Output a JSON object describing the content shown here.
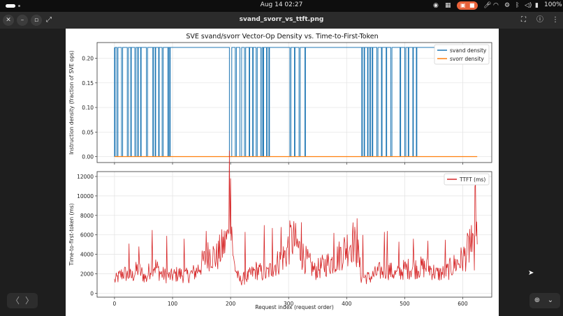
{
  "topbar": {
    "clock": "Aug 14  02:27",
    "battery": "100%",
    "icons": [
      "screen-record-icon",
      "microphone-icon",
      "wifi-icon",
      "bluetooth-icon",
      "volume-icon",
      "battery-icon"
    ]
  },
  "header": {
    "title": "svand_svorr_vs_ttft.png",
    "close_glyph": "✕",
    "minimize_glyph": "–",
    "restore_glyph": "▫",
    "fullscreen_glyph": "⤢",
    "crop_glyph": "⛶",
    "info_glyph": "ⓘ",
    "menu_glyph": "⋮"
  },
  "footer": {
    "prev_glyph": "〈",
    "next_glyph": "〉",
    "zoom_glyph": "⊕",
    "zoom_menu_glyph": "⌄"
  },
  "colors": {
    "svand": "#1f77b4",
    "svorr": "#ff7f0e",
    "ttft": "#d62728",
    "record_pill": "#e8623a"
  },
  "chart_data": [
    {
      "type": "line",
      "title": "SVE svand/svorr Vector-Op Density vs. Time-to-First-Token",
      "ylabel": "Instruction density (fraction of SVE ops)",
      "xlim": [
        -30,
        650
      ],
      "ylim": [
        -0.012,
        0.232
      ],
      "yticks": [
        0.0,
        0.05,
        0.1,
        0.15,
        0.2
      ],
      "grid": true,
      "legend": "top-right",
      "series": [
        {
          "name": "svand density",
          "high": 0.222,
          "low": 0.0,
          "x_range": [
            0,
            625
          ],
          "low_intervals": [
            [
              0,
              1
            ],
            [
              4,
              6
            ],
            [
              12,
              14
            ],
            [
              22,
              24
            ],
            [
              28,
              29
            ],
            [
              35,
              37
            ],
            [
              40,
              41
            ],
            [
              45,
              46
            ],
            [
              55,
              57
            ],
            [
              66,
              67
            ],
            [
              70,
              71
            ],
            [
              76,
              77
            ],
            [
              82,
              84
            ],
            [
              92,
              93
            ],
            [
              95,
              96
            ],
            [
              198,
              202
            ],
            [
              208,
              210
            ],
            [
              216,
              219
            ],
            [
              224,
              226
            ],
            [
              232,
              233
            ],
            [
              238,
              239
            ],
            [
              244,
              246
            ],
            [
              252,
              254
            ],
            [
              256,
              257
            ],
            [
              262,
              263
            ],
            [
              266,
              267
            ],
            [
              302,
              304
            ],
            [
              310,
              311
            ],
            [
              318,
              320
            ],
            [
              328,
              329
            ],
            [
              426,
              427
            ],
            [
              430,
              431
            ],
            [
              436,
              437
            ],
            [
              440,
              441
            ],
            [
              444,
              445
            ],
            [
              452,
              454
            ],
            [
              460,
              461
            ],
            [
              468,
              469
            ],
            [
              476,
              478
            ],
            [
              492,
              493
            ],
            [
              500,
              502
            ],
            [
              506,
              507
            ],
            [
              514,
              515
            ],
            [
              520,
              521
            ]
          ]
        },
        {
          "name": "svorr density",
          "y": [
            [
              0,
              0.0
            ],
            [
              625,
              0.0
            ]
          ]
        }
      ]
    },
    {
      "type": "line",
      "xlabel": "Request index (request order)",
      "ylabel": "Time-to-first-token (ms)",
      "xlim": [
        -30,
        650
      ],
      "ylim": [
        -400,
        12500
      ],
      "xticks": [
        0,
        100,
        200,
        300,
        400,
        500,
        600
      ],
      "yticks": [
        0,
        2000,
        4000,
        6000,
        8000,
        10000,
        12000
      ],
      "grid": true,
      "legend": "top-right",
      "series": [
        {
          "name": "TTFT (ms)",
          "x_range": [
            0,
            625
          ],
          "points": [
            [
              0,
              1300
            ],
            [
              15,
              2100
            ],
            [
              30,
              1700
            ],
            [
              40,
              2500
            ],
            [
              55,
              1500
            ],
            [
              65,
              3200
            ],
            [
              80,
              2000
            ],
            [
              95,
              1700
            ],
            [
              110,
              2000
            ],
            [
              125,
              1800
            ],
            [
              140,
              2200
            ],
            [
              155,
              3400
            ],
            [
              165,
              4200
            ],
            [
              175,
              3600
            ],
            [
              185,
              4600
            ],
            [
              195,
              5600
            ],
            [
              198,
              11800
            ],
            [
              205,
              3200
            ],
            [
              215,
              1300
            ],
            [
              230,
              1700
            ],
            [
              245,
              2400
            ],
            [
              260,
              1900
            ],
            [
              280,
              3100
            ],
            [
              295,
              4000
            ],
            [
              305,
              5700
            ],
            [
              315,
              4800
            ],
            [
              330,
              3400
            ],
            [
              345,
              2300
            ],
            [
              365,
              3000
            ],
            [
              380,
              3400
            ],
            [
              395,
              4400
            ],
            [
              410,
              5500
            ],
            [
              420,
              4000
            ],
            [
              425,
              1700
            ],
            [
              440,
              1600
            ],
            [
              455,
              2200
            ],
            [
              470,
              2500
            ],
            [
              485,
              1900
            ],
            [
              500,
              2500
            ],
            [
              520,
              2600
            ],
            [
              540,
              2700
            ],
            [
              555,
              2000
            ],
            [
              570,
              2100
            ],
            [
              585,
              2900
            ],
            [
              600,
              3500
            ],
            [
              610,
              4500
            ],
            [
              620,
              4200
            ],
            [
              622,
              11300
            ],
            [
              625,
              4000
            ]
          ],
          "spikes": [
            [
              25,
              5100
            ],
            [
              42,
              4800
            ],
            [
              65,
              6500
            ],
            [
              90,
              5900
            ],
            [
              120,
              5600
            ],
            [
              158,
              6400
            ],
            [
              200,
              11800
            ],
            [
              225,
              6300
            ],
            [
              258,
              7000
            ],
            [
              272,
              6700
            ],
            [
              287,
              6800
            ],
            [
              305,
              6600
            ],
            [
              322,
              7300
            ],
            [
              378,
              6200
            ],
            [
              410,
              6000
            ],
            [
              418,
              7700
            ],
            [
              428,
              6000
            ],
            [
              465,
              6300
            ],
            [
              470,
              6400
            ],
            [
              490,
              5300
            ],
            [
              515,
              5600
            ],
            [
              540,
              5400
            ],
            [
              570,
              5500
            ],
            [
              612,
              6600
            ],
            [
              615,
              7000
            ],
            [
              622,
              11300
            ]
          ]
        }
      ]
    }
  ]
}
